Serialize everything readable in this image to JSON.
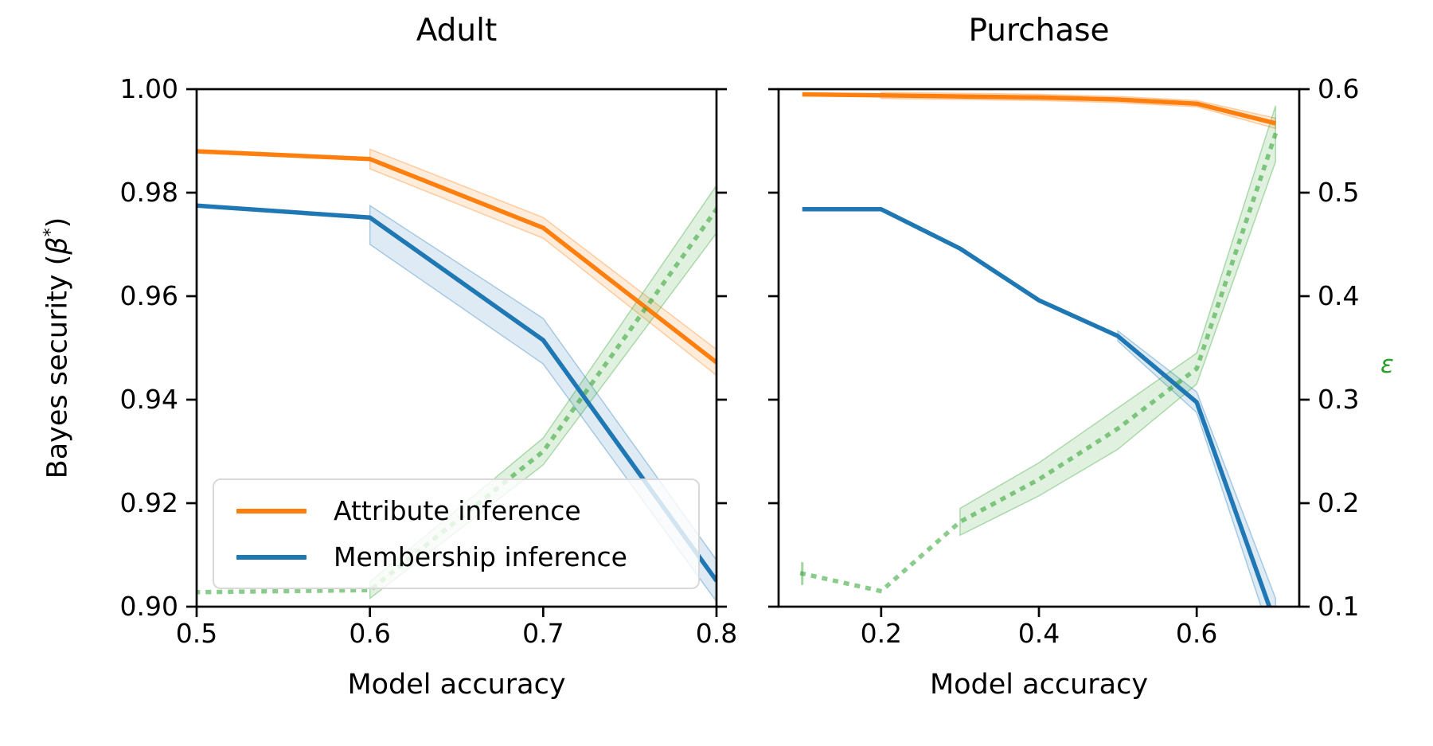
{
  "figure": {
    "background": "#ffffff",
    "ylabel_left": {
      "text": "Bayes security (β*)",
      "prefix": "Bayes security (",
      "symbol": "β",
      "superscript": "*",
      "suffix": ")"
    },
    "ylabel_right": "ε",
    "ylabel_right_color": "#2ca02c"
  },
  "legend": {
    "items": [
      {
        "label": "Attribute inference",
        "color": "#ff7f0e"
      },
      {
        "label": "Membership inference",
        "color": "#1f77b4"
      }
    ]
  },
  "chart_data": [
    {
      "type": "line",
      "title": "Adult",
      "xlabel": "Model accuracy",
      "axes": {
        "xlim": [
          0.5,
          0.8
        ],
        "ylim_left": [
          0.9,
          1.0
        ],
        "ylim_right": [
          0.1,
          0.6
        ],
        "xticks": [
          0.5,
          0.6,
          0.7,
          0.8
        ],
        "yticks_left": [
          0.9,
          0.92,
          0.94,
          0.96,
          0.98,
          1.0
        ],
        "yticks_right": [
          0.1,
          0.2,
          0.3,
          0.4,
          0.5,
          0.6
        ],
        "show_yticklabels_left": true,
        "show_yticklabels_right": false,
        "tick_decimals": {
          "x": 1,
          "y_left": 2,
          "y_right": 1
        },
        "grid": false
      },
      "series": [
        {
          "id": "attribute-inference",
          "name": "Attribute inference",
          "axis": "left",
          "style": "solid",
          "color": "#ff7f0e",
          "x": [
            0.5,
            0.6,
            0.7,
            0.8
          ],
          "y": [
            0.988,
            0.9865,
            0.9732,
            0.9472
          ],
          "band_upper": [
            0,
            0.0019,
            0.002,
            0.0025
          ],
          "band_lower": [
            0,
            0.0019,
            0.002,
            0.0025
          ],
          "band_from_index": 1
        },
        {
          "id": "membership-inference",
          "name": "Membership inference",
          "axis": "left",
          "style": "solid",
          "color": "#1f77b4",
          "x": [
            0.5,
            0.6,
            0.7,
            0.8
          ],
          "y": [
            0.9775,
            0.9752,
            0.9515,
            0.905
          ],
          "band_upper": [
            0,
            0.0023,
            0.0042,
            0.004
          ],
          "band_lower": [
            0,
            0.0052,
            0.0046,
            0.004
          ],
          "band_from_index": 1
        },
        {
          "id": "epsilon",
          "name": "ε",
          "axis": "right",
          "style": "dotted",
          "color": "#2ca02c",
          "x": [
            0.5,
            0.6,
            0.7,
            0.8
          ],
          "y": [
            0.114,
            0.116,
            0.25,
            0.484
          ],
          "band_upper": [
            0,
            0.008,
            0.013,
            0.023
          ],
          "band_lower": [
            0,
            0.008,
            0.013,
            0.023
          ],
          "band_from_index": 1
        }
      ]
    },
    {
      "type": "line",
      "title": "Purchase",
      "xlabel": "Model accuracy",
      "axes": {
        "xlim": [
          0.07,
          0.73
        ],
        "ylim_left": [
          0.9,
          1.0
        ],
        "ylim_right": [
          0.1,
          0.6
        ],
        "xticks": [
          0.2,
          0.4,
          0.6
        ],
        "yticks_left": [
          0.9,
          0.92,
          0.94,
          0.96,
          0.98,
          1.0
        ],
        "yticks_right": [
          0.1,
          0.2,
          0.3,
          0.4,
          0.5,
          0.6
        ],
        "show_yticklabels_left": false,
        "show_yticklabels_right": true,
        "tick_decimals": {
          "x": 1,
          "y_left": 2,
          "y_right": 1
        },
        "grid": false
      },
      "series": [
        {
          "id": "attribute-inference",
          "name": "Attribute inference",
          "axis": "left",
          "style": "solid",
          "color": "#ff7f0e",
          "x": [
            0.1,
            0.2,
            0.3,
            0.4,
            0.5,
            0.6,
            0.7
          ],
          "y": [
            0.999,
            0.9988,
            0.9986,
            0.9984,
            0.998,
            0.9972,
            0.9934
          ],
          "band_upper": [
            0,
            0.0006,
            0.0006,
            0.0006,
            0.0006,
            0.0006,
            0.001
          ],
          "band_lower": [
            0,
            0.0006,
            0.0006,
            0.0006,
            0.0006,
            0.0006,
            0.001
          ],
          "band_from_index": 1
        },
        {
          "id": "membership-inference",
          "name": "Membership inference",
          "axis": "left",
          "style": "solid",
          "color": "#1f77b4",
          "x": [
            0.1,
            0.2,
            0.3,
            0.4,
            0.5,
            0.6,
            0.7
          ],
          "y": [
            0.9768,
            0.9768,
            0.9692,
            0.9592,
            0.9523,
            0.9395,
            0.8966
          ],
          "band_upper": [
            0,
            0,
            0,
            0,
            0.001,
            0.002,
            0.005
          ],
          "band_lower": [
            0,
            0,
            0,
            0,
            0.001,
            0.002,
            0.005
          ],
          "band_from_index": 4
        },
        {
          "id": "epsilon",
          "name": "ε",
          "axis": "right",
          "style": "dotted",
          "color": "#2ca02c",
          "x": [
            0.1,
            0.2,
            0.3,
            0.4,
            0.5,
            0.6,
            0.7
          ],
          "y": [
            0.132,
            0.115,
            0.182,
            0.223,
            0.272,
            0.33,
            0.557
          ],
          "band_upper": [
            0,
            0,
            0.013,
            0.016,
            0.02,
            0.015,
            0.027
          ],
          "band_lower": [
            0,
            0,
            0.013,
            0.016,
            0.02,
            0.015,
            0.027
          ],
          "band_from_index": 2,
          "errorbar_first_point": 0.011
        }
      ]
    }
  ]
}
